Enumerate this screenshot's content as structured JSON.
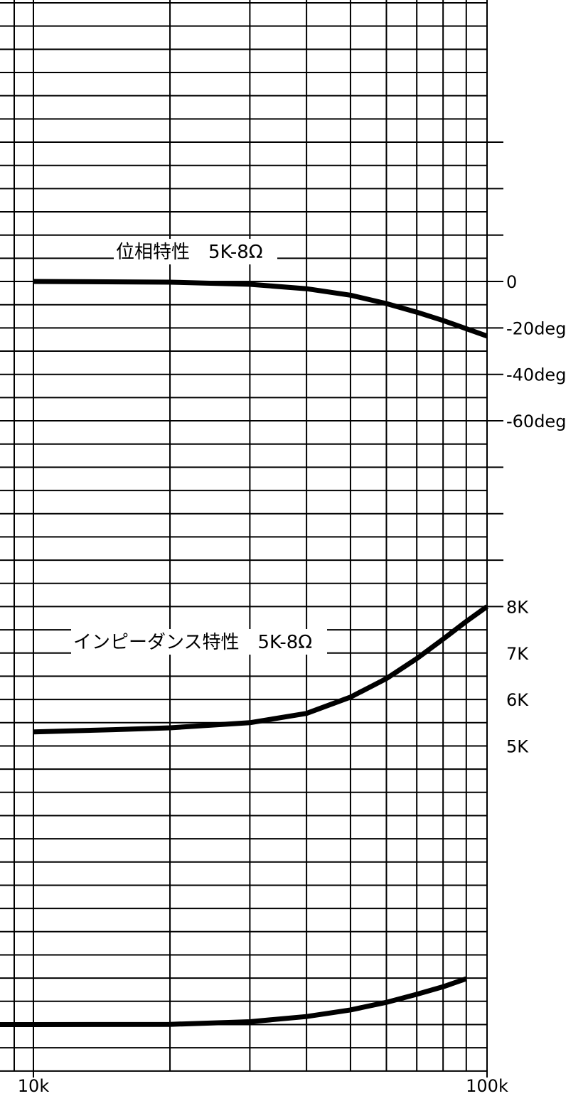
{
  "chart_data": {
    "type": "line",
    "x_scale": "log",
    "x_ticks": [
      {
        "value": 10000,
        "label": "10k"
      },
      {
        "value": 100000,
        "label": "100k"
      }
    ],
    "phase_axis": {
      "unit": "deg",
      "ticks": [
        {
          "value": 0,
          "label": "0"
        },
        {
          "value": -20,
          "label": "-20deg"
        },
        {
          "value": -40,
          "label": "-40deg"
        },
        {
          "value": -60,
          "label": "-60deg"
        }
      ]
    },
    "impedance_axis": {
      "unit": "ohm",
      "ticks": [
        {
          "value": 8000,
          "label": "8K"
        },
        {
          "value": 7000,
          "label": "7K"
        },
        {
          "value": 6000,
          "label": "6K"
        },
        {
          "value": 5000,
          "label": "5K"
        }
      ]
    },
    "annotations": {
      "phase": "位相特性　5K-8Ω",
      "impedance": "インピーダンス特性　5K-8Ω"
    },
    "series": [
      {
        "axis": "phase",
        "x": [
          10000,
          20000,
          30000,
          40000,
          50000,
          60000,
          70000,
          80000,
          100000
        ],
        "y": [
          0,
          -0.3,
          -1.2,
          -3.1,
          -5.9,
          -9.5,
          -13.2,
          -16.8,
          -23.5
        ]
      },
      {
        "axis": "impedance",
        "x": [
          10000,
          15000,
          20000,
          30000,
          40000,
          50000,
          60000,
          70000,
          80000,
          90000,
          100000
        ],
        "y": [
          5300,
          5350,
          5390,
          5500,
          5700,
          6050,
          6450,
          6880,
          7300,
          7680,
          8000
        ]
      },
      {
        "axis": "bottom",
        "x": [
          5500,
          10000,
          20000,
          30000,
          40000,
          50000,
          60000,
          70000,
          80000,
          90000
        ],
        "y": [
          0,
          0,
          -0.02,
          -0.3,
          -0.85,
          -1.55,
          -2.35,
          -3.2,
          -4.0,
          -4.85
        ]
      }
    ]
  }
}
